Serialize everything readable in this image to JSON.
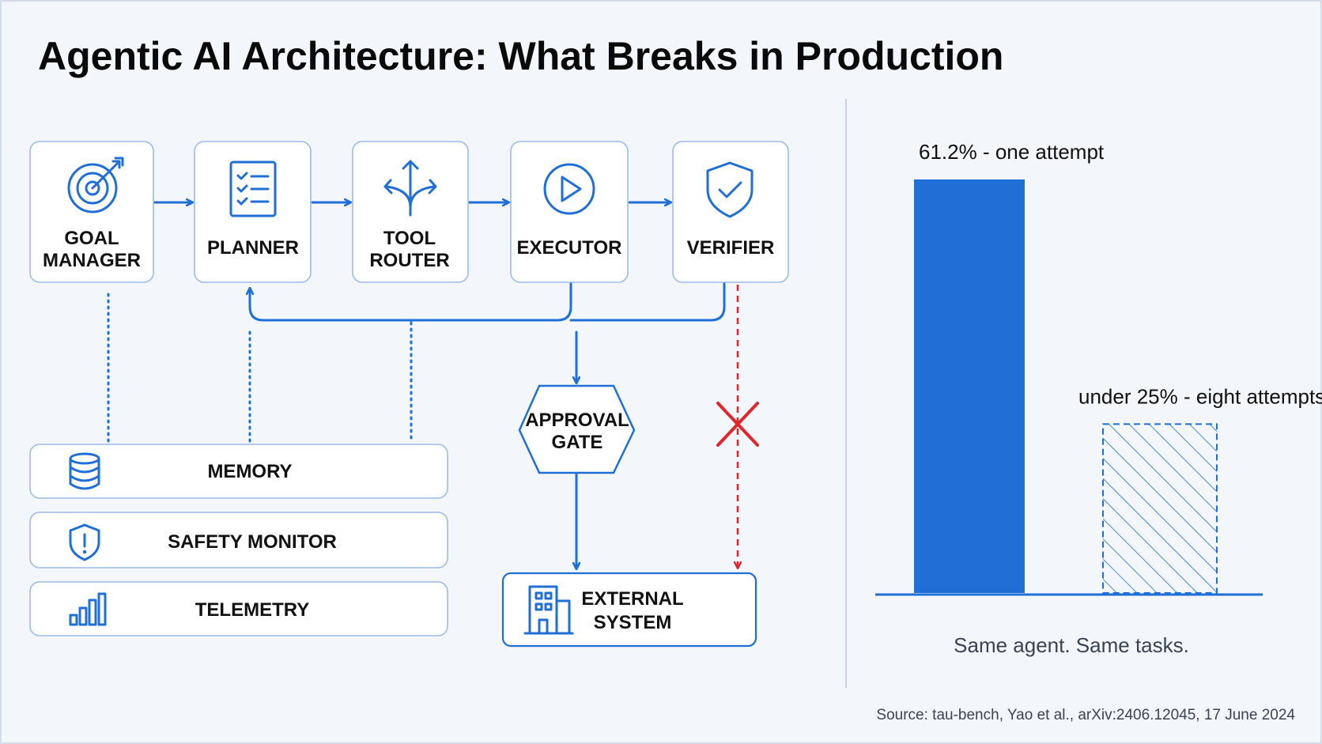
{
  "title": "Agentic AI Architecture: What Breaks in Production",
  "pipeline": [
    {
      "id": "goal-manager",
      "line1": "GOAL",
      "line2": "MANAGER",
      "icon": "target-icon"
    },
    {
      "id": "planner",
      "line1": "PLANNER",
      "line2": "",
      "icon": "checklist-icon"
    },
    {
      "id": "tool-router",
      "line1": "TOOL",
      "line2": "ROUTER",
      "icon": "route-split-icon"
    },
    {
      "id": "executor",
      "line1": "EXECUTOR",
      "line2": "",
      "icon": "play-circle-icon"
    },
    {
      "id": "verifier",
      "line1": "VERIFIER",
      "line2": "",
      "icon": "shield-check-icon"
    }
  ],
  "services": [
    {
      "id": "memory",
      "label": "MEMORY",
      "icon": "database-icon"
    },
    {
      "id": "safety-monitor",
      "label": "SAFETY MONITOR",
      "icon": "shield-alert-icon"
    },
    {
      "id": "telemetry",
      "label": "TELEMETRY",
      "icon": "bar-chart-icon"
    }
  ],
  "approval_gate": {
    "line1": "APPROVAL",
    "line2": "GATE"
  },
  "external_system": {
    "line1": "EXTERNAL",
    "line2": "SYSTEM",
    "icon": "building-icon"
  },
  "colors": {
    "accent": "#1f6fd6",
    "danger": "#e0262b",
    "box_border": "#9cbcea",
    "background": "#f3f6fb"
  },
  "chart_data": {
    "type": "bar",
    "categories": [
      "one attempt",
      "eight attempts"
    ],
    "values": [
      61.2,
      25
    ],
    "labels": [
      "61.2% - one attempt",
      "under 25% - eight attempts"
    ],
    "styles": [
      "solid",
      "hatched"
    ],
    "caption": "Same agent. Same tasks.",
    "ylim": [
      0,
      70
    ]
  },
  "source": "Source: tau-bench, Yao et al., arXiv:2406.12045, 17 June 2024"
}
